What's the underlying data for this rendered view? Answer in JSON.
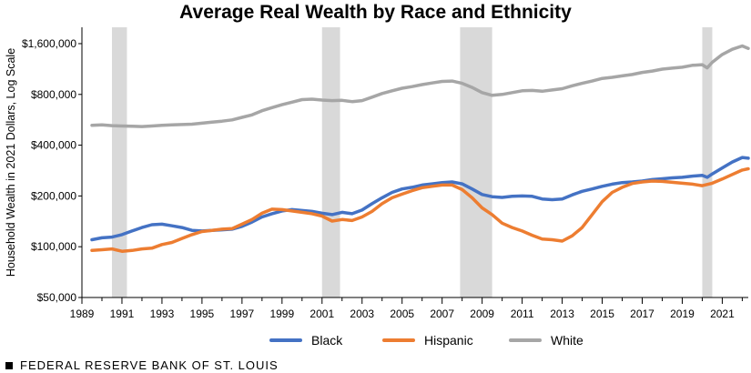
{
  "chart_data": {
    "type": "line",
    "title": "Average Real Wealth by Race and Ethnicity",
    "ylabel": "Household Wealth in 2021 Dollars, Log Scale",
    "xlabel": "",
    "y_scale": "log",
    "ylim": [
      50000,
      2000000
    ],
    "xlim": [
      1989.0,
      2022.3
    ],
    "y_ticks": [
      50000,
      100000,
      200000,
      400000,
      800000,
      1600000
    ],
    "y_tick_labels": [
      "$50,000",
      "$100,000",
      "$200,000",
      "$400,000",
      "$800,000",
      "$1,600,000"
    ],
    "x_ticks": [
      1989,
      1991,
      1993,
      1995,
      1997,
      1999,
      2001,
      2003,
      2005,
      2007,
      2009,
      2011,
      2013,
      2015,
      2017,
      2019,
      2021
    ],
    "x_tick_labels": [
      "1989",
      "1991",
      "1993",
      "1995",
      "1997",
      "1999",
      "2001",
      "2003",
      "2005",
      "2007",
      "2009",
      "2011",
      "2013",
      "2015",
      "2017",
      "2019",
      "2021"
    ],
    "recessions": [
      [
        1990.5,
        1991.25
      ],
      [
        2001.0,
        2001.9
      ],
      [
        2007.9,
        2009.5
      ],
      [
        2020.0,
        2020.5
      ]
    ],
    "legend_position": "bottom-center",
    "series": [
      {
        "name": "Black",
        "color": "#4472c4",
        "points": [
          [
            1989.5,
            110000
          ],
          [
            1990.0,
            113000
          ],
          [
            1990.5,
            114000
          ],
          [
            1991.0,
            118000
          ],
          [
            1991.5,
            124000
          ],
          [
            1992.0,
            130000
          ],
          [
            1992.5,
            135000
          ],
          [
            1993.0,
            136000
          ],
          [
            1993.5,
            133000
          ],
          [
            1994.0,
            130000
          ],
          [
            1994.5,
            125000
          ],
          [
            1995.0,
            124000
          ],
          [
            1995.5,
            125000
          ],
          [
            1996.0,
            126000
          ],
          [
            1996.5,
            127000
          ],
          [
            1997.0,
            132000
          ],
          [
            1997.5,
            140000
          ],
          [
            1998.0,
            150000
          ],
          [
            1998.5,
            157000
          ],
          [
            1999.0,
            163000
          ],
          [
            1999.5,
            166000
          ],
          [
            2000.0,
            164000
          ],
          [
            2000.5,
            162000
          ],
          [
            2001.0,
            158000
          ],
          [
            2001.5,
            155000
          ],
          [
            2002.0,
            160000
          ],
          [
            2002.5,
            157000
          ],
          [
            2003.0,
            165000
          ],
          [
            2003.5,
            180000
          ],
          [
            2004.0,
            195000
          ],
          [
            2004.5,
            210000
          ],
          [
            2005.0,
            220000
          ],
          [
            2005.5,
            225000
          ],
          [
            2006.0,
            232000
          ],
          [
            2006.5,
            236000
          ],
          [
            2007.0,
            240000
          ],
          [
            2007.5,
            242000
          ],
          [
            2008.0,
            236000
          ],
          [
            2008.5,
            220000
          ],
          [
            2009.0,
            204000
          ],
          [
            2009.5,
            198000
          ],
          [
            2010.0,
            196000
          ],
          [
            2010.5,
            199000
          ],
          [
            2011.0,
            200000
          ],
          [
            2011.5,
            199000
          ],
          [
            2012.0,
            192000
          ],
          [
            2012.5,
            190000
          ],
          [
            2013.0,
            192000
          ],
          [
            2013.5,
            203000
          ],
          [
            2014.0,
            213000
          ],
          [
            2014.5,
            220000
          ],
          [
            2015.0,
            228000
          ],
          [
            2015.5,
            235000
          ],
          [
            2016.0,
            240000
          ],
          [
            2016.5,
            242000
          ],
          [
            2017.0,
            245000
          ],
          [
            2017.5,
            250000
          ],
          [
            2018.0,
            253000
          ],
          [
            2018.5,
            256000
          ],
          [
            2019.0,
            258000
          ],
          [
            2019.5,
            262000
          ],
          [
            2020.0,
            265000
          ],
          [
            2020.25,
            258000
          ],
          [
            2020.5,
            270000
          ],
          [
            2021.0,
            293000
          ],
          [
            2021.5,
            318000
          ],
          [
            2022.0,
            338000
          ],
          [
            2022.3,
            335000
          ]
        ]
      },
      {
        "name": "Hispanic",
        "color": "#ed7d31",
        "points": [
          [
            1989.5,
            95000
          ],
          [
            1990.0,
            96000
          ],
          [
            1990.5,
            97000
          ],
          [
            1991.0,
            94000
          ],
          [
            1991.5,
            95000
          ],
          [
            1992.0,
            97000
          ],
          [
            1992.5,
            98000
          ],
          [
            1993.0,
            103000
          ],
          [
            1993.5,
            106000
          ],
          [
            1994.0,
            112000
          ],
          [
            1994.5,
            118000
          ],
          [
            1995.0,
            123000
          ],
          [
            1995.5,
            125000
          ],
          [
            1996.0,
            127000
          ],
          [
            1996.5,
            128000
          ],
          [
            1997.0,
            136000
          ],
          [
            1997.5,
            145000
          ],
          [
            1998.0,
            158000
          ],
          [
            1998.5,
            167000
          ],
          [
            1999.0,
            166000
          ],
          [
            1999.5,
            163000
          ],
          [
            2000.0,
            160000
          ],
          [
            2000.5,
            157000
          ],
          [
            2001.0,
            152000
          ],
          [
            2001.5,
            142000
          ],
          [
            2002.0,
            145000
          ],
          [
            2002.5,
            143000
          ],
          [
            2003.0,
            150000
          ],
          [
            2003.5,
            162000
          ],
          [
            2004.0,
            180000
          ],
          [
            2004.5,
            195000
          ],
          [
            2005.0,
            205000
          ],
          [
            2005.5,
            215000
          ],
          [
            2006.0,
            224000
          ],
          [
            2006.5,
            228000
          ],
          [
            2007.0,
            232000
          ],
          [
            2007.5,
            232000
          ],
          [
            2008.0,
            218000
          ],
          [
            2008.5,
            195000
          ],
          [
            2009.0,
            170000
          ],
          [
            2009.5,
            155000
          ],
          [
            2010.0,
            138000
          ],
          [
            2010.5,
            130000
          ],
          [
            2011.0,
            124000
          ],
          [
            2011.5,
            117000
          ],
          [
            2012.0,
            111000
          ],
          [
            2012.5,
            110000
          ],
          [
            2013.0,
            108000
          ],
          [
            2013.5,
            116000
          ],
          [
            2014.0,
            130000
          ],
          [
            2014.5,
            155000
          ],
          [
            2015.0,
            185000
          ],
          [
            2015.5,
            210000
          ],
          [
            2016.0,
            225000
          ],
          [
            2016.5,
            237000
          ],
          [
            2017.0,
            242000
          ],
          [
            2017.5,
            245000
          ],
          [
            2018.0,
            244000
          ],
          [
            2018.5,
            241000
          ],
          [
            2019.0,
            238000
          ],
          [
            2019.5,
            235000
          ],
          [
            2020.0,
            230000
          ],
          [
            2020.5,
            238000
          ],
          [
            2021.0,
            252000
          ],
          [
            2021.5,
            268000
          ],
          [
            2022.0,
            285000
          ],
          [
            2022.3,
            290000
          ]
        ]
      },
      {
        "name": "White",
        "color": "#a6a6a6",
        "points": [
          [
            1989.5,
            525000
          ],
          [
            1990.0,
            528000
          ],
          [
            1990.5,
            522000
          ],
          [
            1991.0,
            520000
          ],
          [
            1991.5,
            518000
          ],
          [
            1992.0,
            516000
          ],
          [
            1992.5,
            520000
          ],
          [
            1993.0,
            524000
          ],
          [
            1993.5,
            528000
          ],
          [
            1994.0,
            530000
          ],
          [
            1994.5,
            533000
          ],
          [
            1995.0,
            540000
          ],
          [
            1995.5,
            548000
          ],
          [
            1996.0,
            555000
          ],
          [
            1996.5,
            565000
          ],
          [
            1997.0,
            585000
          ],
          [
            1997.5,
            605000
          ],
          [
            1998.0,
            640000
          ],
          [
            1998.5,
            668000
          ],
          [
            1999.0,
            695000
          ],
          [
            1999.5,
            720000
          ],
          [
            2000.0,
            745000
          ],
          [
            2000.5,
            750000
          ],
          [
            2001.0,
            740000
          ],
          [
            2001.5,
            735000
          ],
          [
            2002.0,
            738000
          ],
          [
            2002.5,
            725000
          ],
          [
            2003.0,
            735000
          ],
          [
            2003.5,
            770000
          ],
          [
            2004.0,
            810000
          ],
          [
            2004.5,
            840000
          ],
          [
            2005.0,
            870000
          ],
          [
            2005.5,
            890000
          ],
          [
            2006.0,
            915000
          ],
          [
            2006.5,
            935000
          ],
          [
            2007.0,
            955000
          ],
          [
            2007.5,
            960000
          ],
          [
            2008.0,
            930000
          ],
          [
            2008.5,
            880000
          ],
          [
            2009.0,
            820000
          ],
          [
            2009.5,
            790000
          ],
          [
            2010.0,
            800000
          ],
          [
            2010.5,
            820000
          ],
          [
            2011.0,
            840000
          ],
          [
            2011.5,
            845000
          ],
          [
            2012.0,
            835000
          ],
          [
            2012.5,
            850000
          ],
          [
            2013.0,
            865000
          ],
          [
            2013.5,
            900000
          ],
          [
            2014.0,
            930000
          ],
          [
            2014.5,
            960000
          ],
          [
            2015.0,
            995000
          ],
          [
            2015.5,
            1010000
          ],
          [
            2016.0,
            1030000
          ],
          [
            2016.5,
            1050000
          ],
          [
            2017.0,
            1080000
          ],
          [
            2017.5,
            1100000
          ],
          [
            2018.0,
            1130000
          ],
          [
            2018.5,
            1145000
          ],
          [
            2019.0,
            1160000
          ],
          [
            2019.5,
            1190000
          ],
          [
            2020.0,
            1200000
          ],
          [
            2020.25,
            1150000
          ],
          [
            2020.5,
            1240000
          ],
          [
            2021.0,
            1380000
          ],
          [
            2021.5,
            1480000
          ],
          [
            2022.0,
            1550000
          ],
          [
            2022.3,
            1500000
          ]
        ]
      }
    ]
  },
  "footer": {
    "source": "FEDERAL RESERVE BANK OF ST. LOUIS"
  }
}
